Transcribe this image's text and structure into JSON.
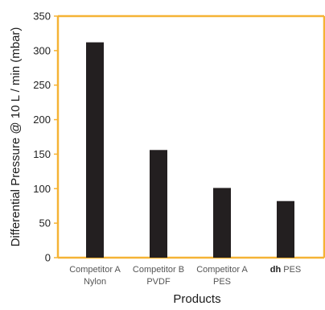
{
  "chart_data": {
    "type": "bar",
    "title": "",
    "xlabel": "Products",
    "ylabel": "Differential Pressure @ 10 L / min (mbar)",
    "ylim": [
      0,
      350
    ],
    "yticks": [
      "0",
      "50",
      "100",
      "150",
      "200",
      "250",
      "300",
      "350"
    ],
    "grid": false,
    "categories": [
      {
        "line1_bold": "",
        "line1": "Competitor A",
        "line2": "Nylon"
      },
      {
        "line1_bold": "",
        "line1": "Competitor B",
        "line2": "PVDF"
      },
      {
        "line1_bold": "",
        "line1": "Competitor A",
        "line2": "PES"
      },
      {
        "line1_bold": "dh",
        "line1": " PES",
        "line2": ""
      }
    ],
    "values": [
      312,
      156,
      101,
      82
    ],
    "colors": {
      "bar": "#231f20",
      "frame": "#f5b335",
      "axis": "#222222"
    }
  }
}
